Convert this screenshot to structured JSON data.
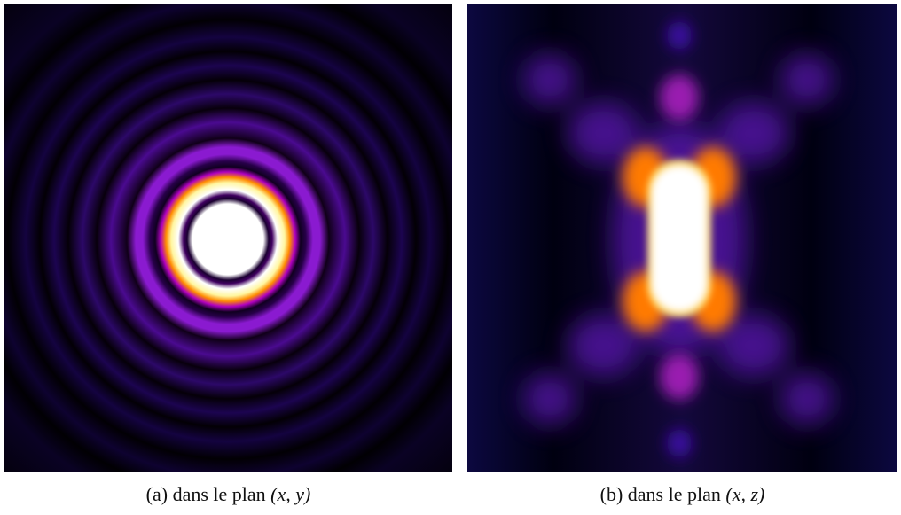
{
  "figures": [
    {
      "label": "(a)",
      "text": "dans le plan",
      "coords": "(x, y)"
    },
    {
      "label": "(b)",
      "text": "dans le plan",
      "coords": "(x, z)"
    }
  ]
}
